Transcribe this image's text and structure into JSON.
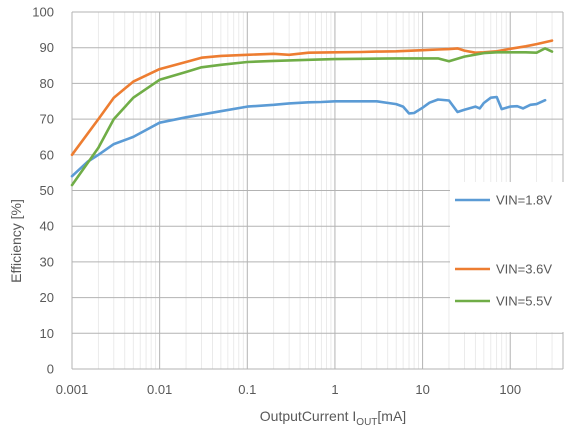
{
  "chart_data": {
    "type": "line",
    "title": "",
    "xlabel": "OutputCurrent I",
    "xlabel_sub": "OUT",
    "xlabel_unit": "[mA]",
    "ylabel": "Efficiency   [%]",
    "xscale": "log",
    "xlim": [
      0.001,
      400
    ],
    "ylim": [
      0,
      100
    ],
    "x_ticks": [
      0.001,
      0.01,
      0.1,
      1,
      10,
      100
    ],
    "x_tick_labels": [
      "0.001",
      "0.01",
      "0.1",
      "1",
      "10",
      "100"
    ],
    "y_ticks": [
      0,
      10,
      20,
      30,
      40,
      50,
      60,
      70,
      80,
      90,
      100
    ],
    "y_tick_labels": [
      "0",
      "10",
      "20",
      "30",
      "40",
      "50",
      "60",
      "70",
      "80",
      "90",
      "100"
    ],
    "grid": true,
    "legend_position": "right",
    "series": [
      {
        "name": "VIN=1.8V",
        "color": "#5b9bd5",
        "x": [
          0.001,
          0.0015,
          0.002,
          0.003,
          0.005,
          0.01,
          0.02,
          0.05,
          0.1,
          0.2,
          0.3,
          0.5,
          0.7,
          1,
          2,
          3,
          5,
          6,
          7,
          8,
          10,
          12,
          15,
          20,
          25,
          30,
          40,
          45,
          50,
          60,
          70,
          80,
          100,
          120,
          140,
          170,
          200,
          250
        ],
        "y": [
          54,
          58,
          60,
          63,
          65,
          69,
          70.5,
          72.2,
          73.5,
          74,
          74.4,
          74.7,
          74.8,
          75,
          75,
          75,
          74.2,
          73.5,
          71.6,
          71.7,
          73.2,
          74.6,
          75.5,
          75.2,
          72,
          72.6,
          73.5,
          73,
          74.5,
          76,
          76.2,
          72.8,
          73.5,
          73.6,
          73,
          74,
          74.2,
          75.3
        ]
      },
      {
        "name": "VIN=3.6V",
        "color": "#ed7d31",
        "x": [
          0.001,
          0.002,
          0.003,
          0.005,
          0.01,
          0.02,
          0.03,
          0.05,
          0.1,
          0.2,
          0.3,
          0.5,
          1,
          2,
          3,
          5,
          10,
          15,
          20,
          25,
          30,
          40,
          50,
          70,
          100,
          150,
          200,
          300
        ],
        "y": [
          60,
          70,
          76,
          80.5,
          84,
          86,
          87.2,
          87.7,
          88,
          88.3,
          88,
          88.6,
          88.7,
          88.8,
          88.9,
          89,
          89.3,
          89.5,
          89.6,
          89.8,
          89.2,
          88.6,
          88.7,
          89,
          89.7,
          90.4,
          91,
          92
        ]
      },
      {
        "name": "VIN=5.5V",
        "color": "#70ad47",
        "x": [
          0.001,
          0.002,
          0.003,
          0.005,
          0.01,
          0.02,
          0.03,
          0.05,
          0.1,
          0.2,
          0.5,
          1,
          2,
          5,
          10,
          15,
          20,
          30,
          50,
          70,
          100,
          150,
          200,
          250,
          300
        ],
        "y": [
          51.5,
          62,
          70,
          76,
          81,
          83.2,
          84.5,
          85.2,
          86,
          86.3,
          86.6,
          86.8,
          86.9,
          87,
          87,
          87,
          86.2,
          87.5,
          88.5,
          88.7,
          88.7,
          88.7,
          88.6,
          89.8,
          88.9
        ]
      }
    ]
  }
}
